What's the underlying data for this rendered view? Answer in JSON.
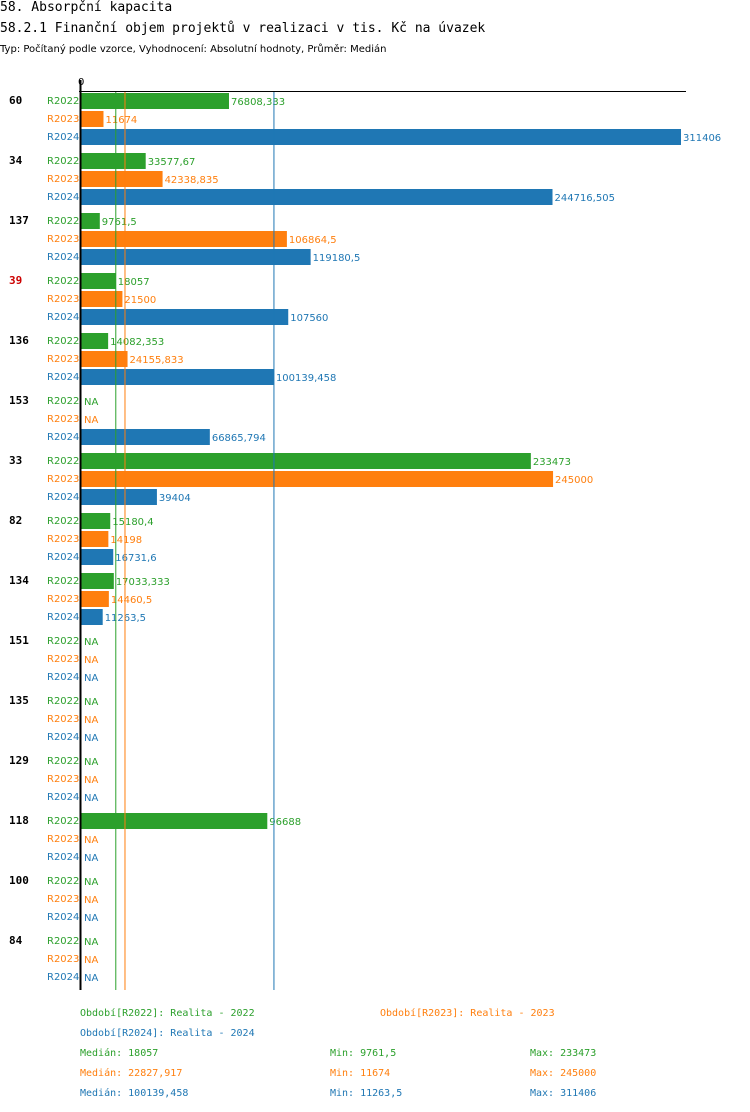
{
  "header": {
    "title": "58. Absorpční kapacita",
    "subtitle": "58.2.1 Finanční objem projektů v realizaci v tis. Kč na úvazek",
    "meta": "Typ: Počítaný podle vzorce, Vyhodnocení: Absolutní hodnoty, Průměr: Medián"
  },
  "colors": {
    "R2022": "#2ca02c",
    "R2023": "#ff7f0e",
    "R2024": "#1f77b4",
    "highlight": "#cc0000",
    "text": "#000000"
  },
  "chart_data": {
    "type": "bar",
    "orientation": "horizontal",
    "x_min_label": "0",
    "xlim": [
      0,
      311406
    ],
    "na_label": "NA",
    "series_names": [
      "R2022",
      "R2023",
      "R2024"
    ],
    "groups": [
      {
        "name": "60",
        "highlight": false,
        "values": [
          76808.333,
          11674,
          311406
        ],
        "labels": [
          "76808,333",
          "11674",
          "311406"
        ]
      },
      {
        "name": "34",
        "highlight": false,
        "values": [
          33577.67,
          42338.835,
          244716.505
        ],
        "labels": [
          "33577,67",
          "42338,835",
          "244716,505"
        ]
      },
      {
        "name": "137",
        "highlight": false,
        "values": [
          9761.5,
          106864.5,
          119180.5
        ],
        "labels": [
          "9761,5",
          "106864,5",
          "119180,5"
        ]
      },
      {
        "name": "39",
        "highlight": true,
        "values": [
          18057,
          21500,
          107560
        ],
        "labels": [
          "18057",
          "21500",
          "107560"
        ]
      },
      {
        "name": "136",
        "highlight": false,
        "values": [
          14082.353,
          24155.833,
          100139.458
        ],
        "labels": [
          "14082,353",
          "24155,833",
          "100139,458"
        ]
      },
      {
        "name": "153",
        "highlight": false,
        "values": [
          null,
          null,
          66865.794
        ],
        "labels": [
          "NA",
          "NA",
          "66865,794"
        ]
      },
      {
        "name": "33",
        "highlight": false,
        "values": [
          233473,
          245000,
          39404
        ],
        "labels": [
          "233473",
          "245000",
          "39404"
        ]
      },
      {
        "name": "82",
        "highlight": false,
        "values": [
          15180.4,
          14198,
          16731.6
        ],
        "labels": [
          "15180,4",
          "14198",
          "16731,6"
        ]
      },
      {
        "name": "134",
        "highlight": false,
        "values": [
          17033.333,
          14460.5,
          11263.5
        ],
        "labels": [
          "17033,333",
          "14460,5",
          "11263,5"
        ]
      },
      {
        "name": "151",
        "highlight": false,
        "values": [
          null,
          null,
          null
        ],
        "labels": [
          "NA",
          "NA",
          "NA"
        ]
      },
      {
        "name": "135",
        "highlight": false,
        "values": [
          null,
          null,
          null
        ],
        "labels": [
          "NA",
          "NA",
          "NA"
        ]
      },
      {
        "name": "129",
        "highlight": false,
        "values": [
          null,
          null,
          null
        ],
        "labels": [
          "NA",
          "NA",
          "NA"
        ]
      },
      {
        "name": "118",
        "highlight": false,
        "values": [
          96688,
          null,
          null
        ],
        "labels": [
          "96688",
          "NA",
          "NA"
        ]
      },
      {
        "name": "100",
        "highlight": false,
        "values": [
          null,
          null,
          null
        ],
        "labels": [
          "NA",
          "NA",
          "NA"
        ]
      },
      {
        "name": "84",
        "highlight": false,
        "values": [
          null,
          null,
          null
        ],
        "labels": [
          "NA",
          "NA",
          "NA"
        ]
      }
    ],
    "median_lines": {
      "R2022": 18057,
      "R2023": 22827.917,
      "R2024": 100139.458
    }
  },
  "legend": {
    "periods": {
      "R2022": "Období[R2022]: Realita - 2022",
      "R2023": "Období[R2023]: Realita - 2023",
      "R2024": "Období[R2024]: Realita - 2024"
    },
    "stats": {
      "R2022": {
        "median": "Medián: 18057",
        "min": "Min: 9761,5",
        "max": "Max: 233473"
      },
      "R2023": {
        "median": "Medián: 22827,917",
        "min": "Min: 11674",
        "max": "Max: 245000"
      },
      "R2024": {
        "median": "Medián: 100139,458",
        "min": "Min: 11263,5",
        "max": "Max: 311406"
      }
    }
  }
}
